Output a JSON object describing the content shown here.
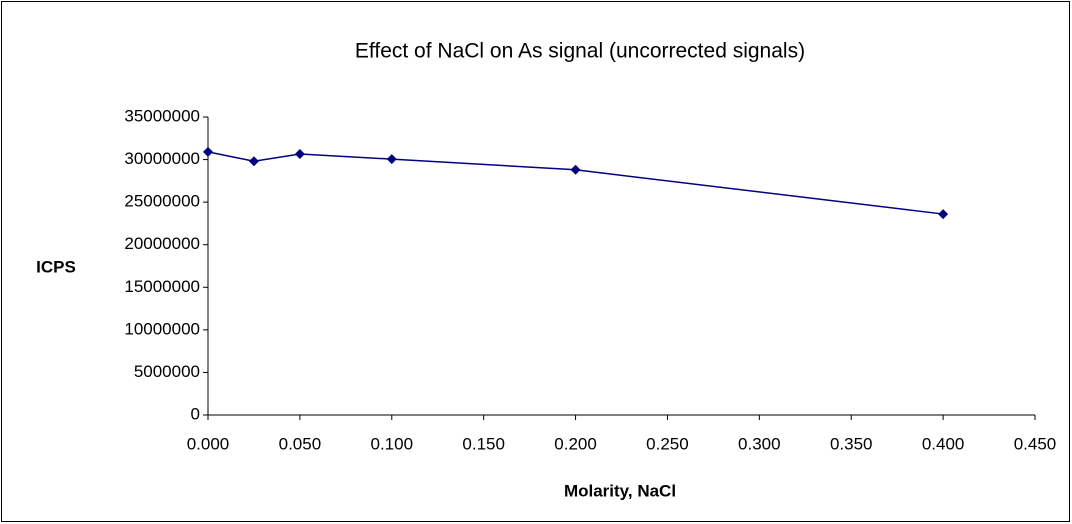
{
  "chart_data": {
    "type": "line",
    "title": "Effect of NaCl on As signal (uncorrected signals)",
    "x_label": "Molarity, NaCl",
    "y_label": "ICPS",
    "x": [
      0,
      0.025,
      0.05,
      0.1,
      0.2,
      0.4
    ],
    "values": [
      30900000,
      29800000,
      30650000,
      30050000,
      28800000,
      23600000
    ],
    "color": "#000080",
    "xlim": [
      0,
      0.45
    ],
    "xticks": [
      {
        "value": 0,
        "label": "0.000"
      },
      {
        "value": 0.05,
        "label": "0.050"
      },
      {
        "value": 0.1,
        "label": "0.100"
      },
      {
        "value": 0.15,
        "label": "0.150"
      },
      {
        "value": 0.2,
        "label": "0.200"
      },
      {
        "value": 0.25,
        "label": "0.250"
      },
      {
        "value": 0.3,
        "label": "0.300"
      },
      {
        "value": 0.35,
        "label": "0.350"
      },
      {
        "value": 0.4,
        "label": "0.400"
      },
      {
        "value": 0.45,
        "label": "0.450"
      }
    ],
    "ylim": [
      0,
      35000000
    ],
    "yticks": [
      0,
      5000000,
      10000000,
      15000000,
      20000000,
      25000000,
      30000000,
      35000000
    ],
    "grid": false
  }
}
